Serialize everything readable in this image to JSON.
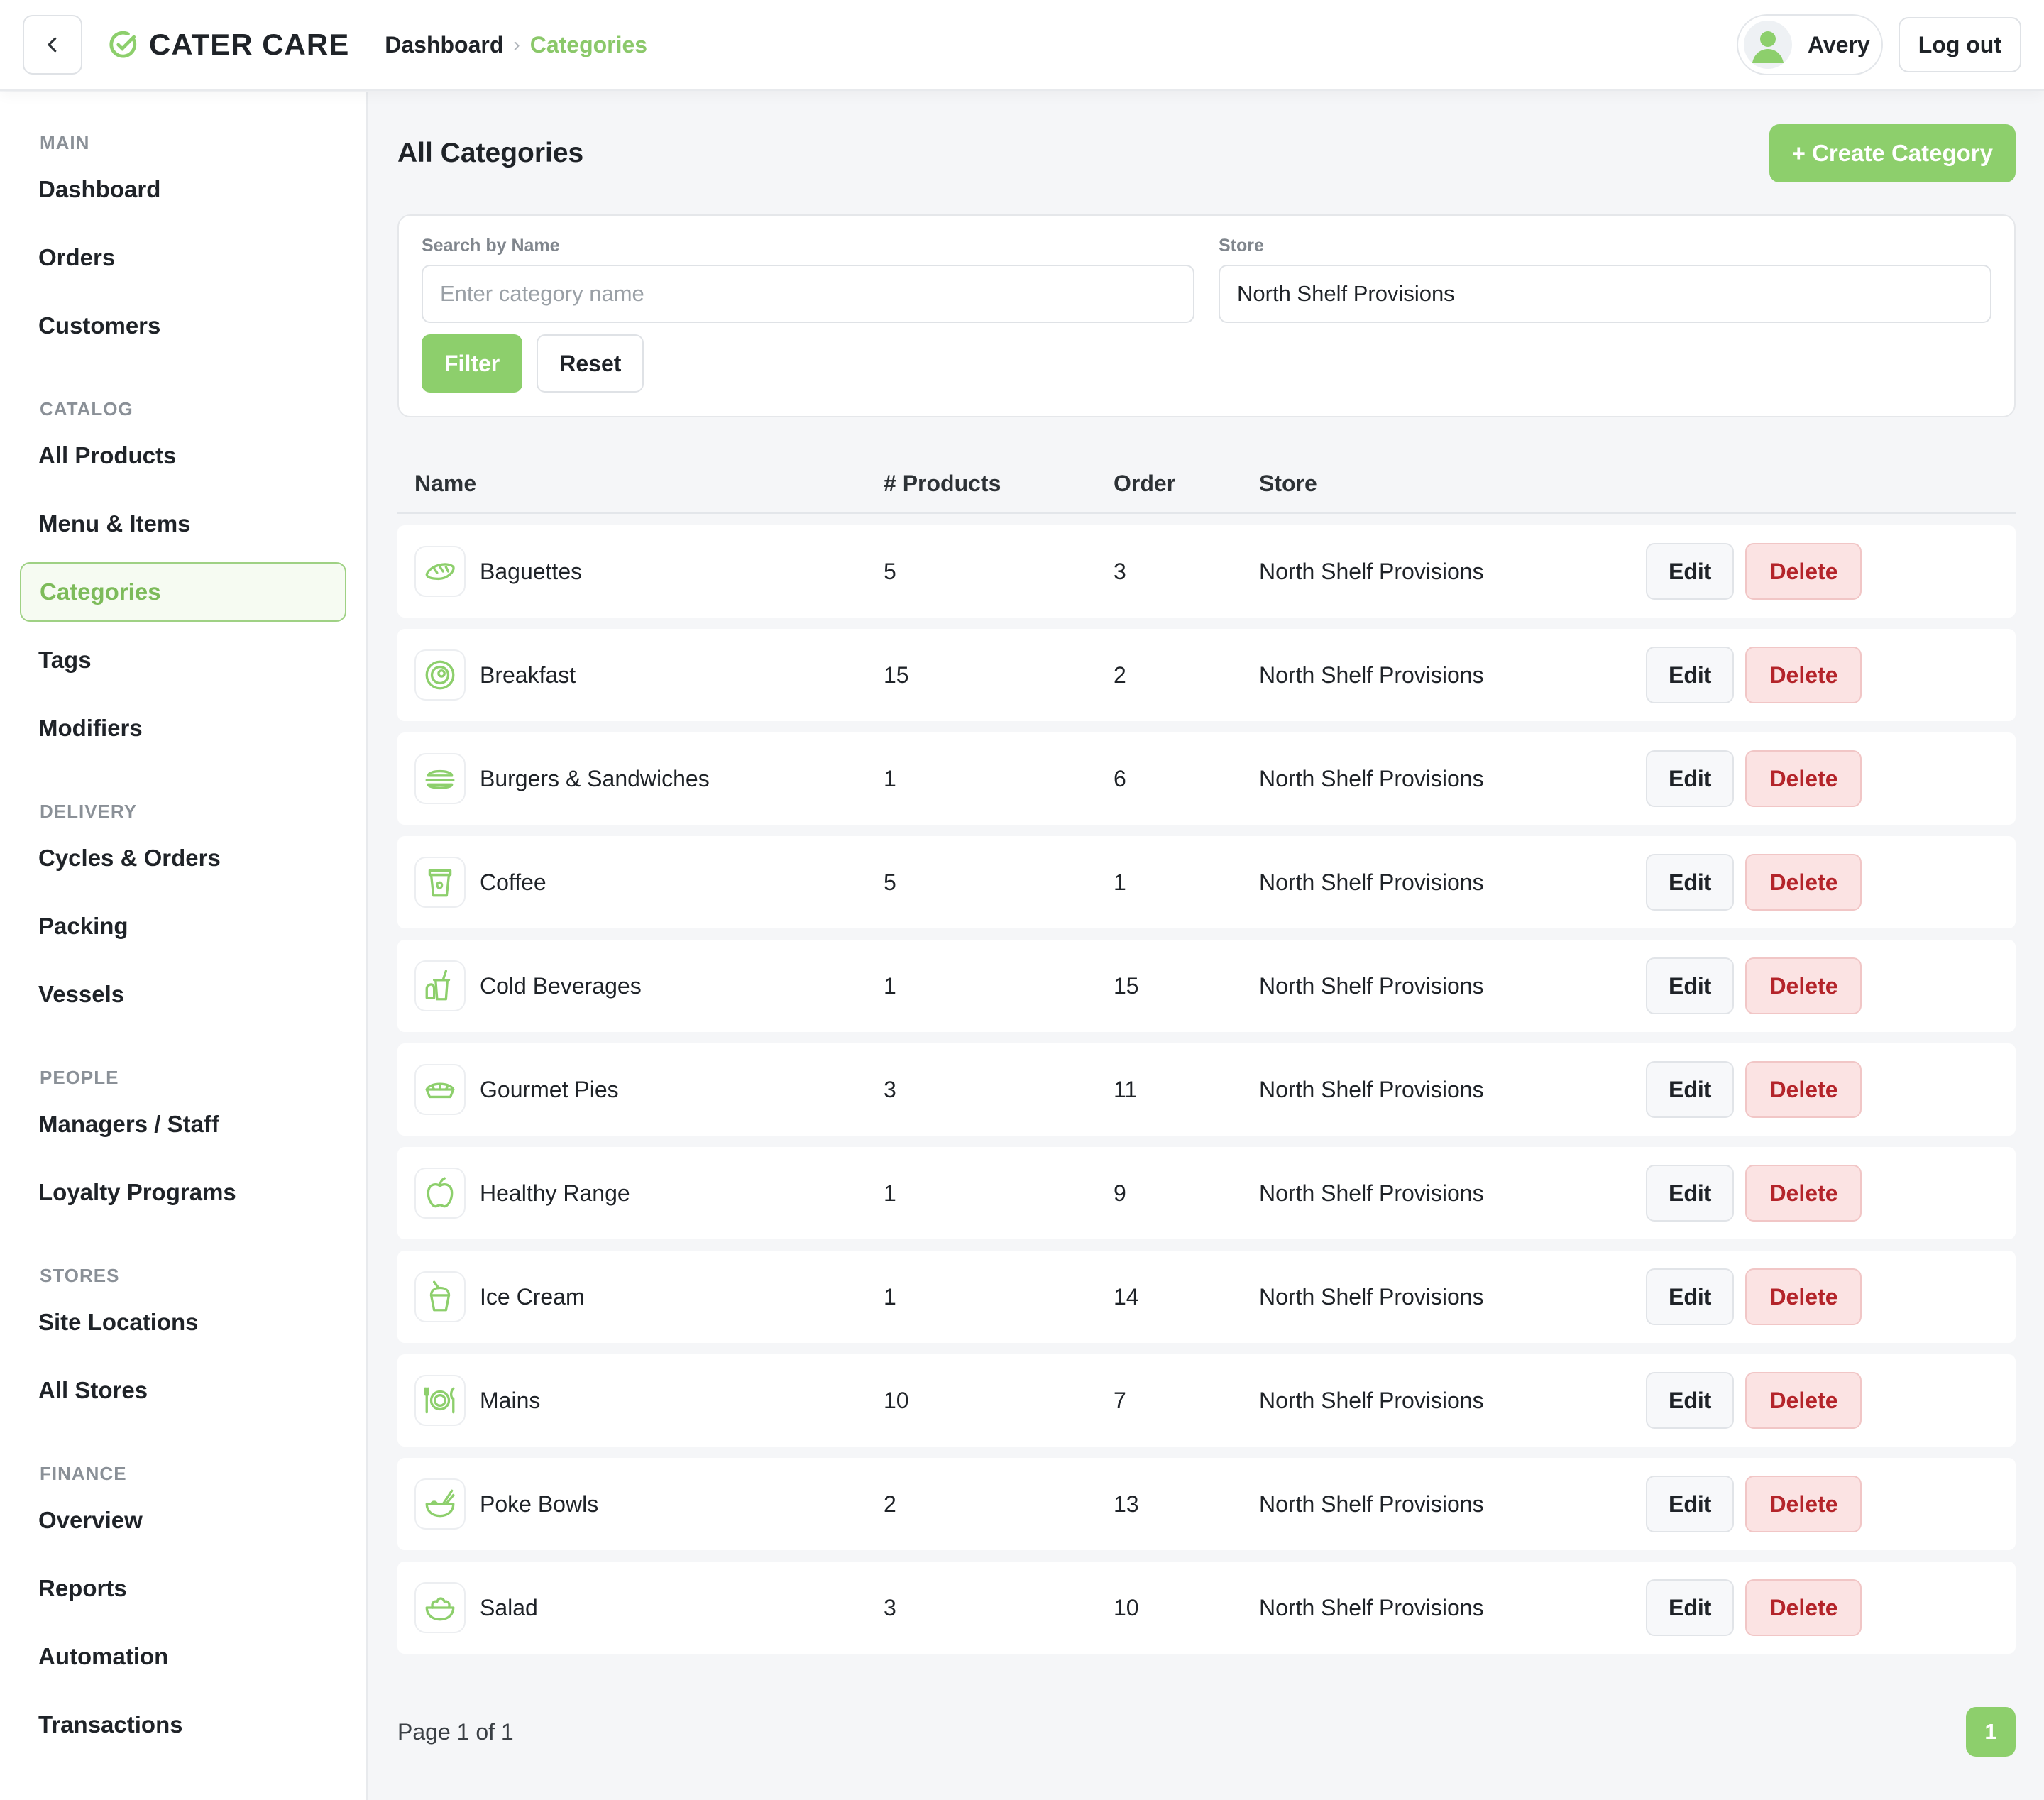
{
  "header": {
    "brand": "CATER CARE",
    "breadcrumb": {
      "home": "Dashboard",
      "separator": "›",
      "current": "Categories"
    },
    "user_name": "Avery",
    "logout_label": "Log out"
  },
  "sidebar": {
    "sections": [
      {
        "title": "MAIN",
        "items": [
          "Dashboard",
          "Orders",
          "Customers"
        ]
      },
      {
        "title": "CATALOG",
        "items": [
          "All Products",
          "Menu & Items",
          "Categories",
          "Tags",
          "Modifiers"
        ]
      },
      {
        "title": "DELIVERY",
        "items": [
          "Cycles & Orders",
          "Packing",
          "Vessels"
        ]
      },
      {
        "title": "PEOPLE",
        "items": [
          "Managers / Staff",
          "Loyalty Programs"
        ]
      },
      {
        "title": "STORES",
        "items": [
          "Site Locations",
          "All Stores"
        ]
      },
      {
        "title": "FINANCE",
        "items": [
          "Overview",
          "Reports",
          "Automation",
          "Transactions"
        ]
      }
    ],
    "active_item": "Categories"
  },
  "main": {
    "title": "All Categories",
    "create_label": "+ Create Category",
    "filter": {
      "search_label": "Search by Name",
      "search_placeholder": "Enter category name",
      "search_value": "",
      "store_label": "Store",
      "store_value": "North Shelf Provisions",
      "filter_label": "Filter",
      "reset_label": "Reset"
    },
    "table": {
      "columns": [
        "Name",
        "# Products",
        "Order",
        "Store"
      ],
      "edit_label": "Edit",
      "delete_label": "Delete",
      "rows": [
        {
          "name": "Baguettes",
          "products": "5",
          "order": "3",
          "store": "North Shelf Provisions",
          "icon": "baguette-icon"
        },
        {
          "name": "Breakfast",
          "products": "15",
          "order": "2",
          "store": "North Shelf Provisions",
          "icon": "breakfast-plate-icon"
        },
        {
          "name": "Burgers & Sandwiches",
          "products": "1",
          "order": "6",
          "store": "North Shelf Provisions",
          "icon": "burger-icon"
        },
        {
          "name": "Coffee",
          "products": "5",
          "order": "1",
          "store": "North Shelf Provisions",
          "icon": "coffee-cup-icon"
        },
        {
          "name": "Cold Beverages",
          "products": "1",
          "order": "15",
          "store": "North Shelf Provisions",
          "icon": "cold-drink-icon"
        },
        {
          "name": "Gourmet Pies",
          "products": "3",
          "order": "11",
          "store": "North Shelf Provisions",
          "icon": "pie-icon"
        },
        {
          "name": "Healthy Range",
          "products": "1",
          "order": "9",
          "store": "North Shelf Provisions",
          "icon": "apple-icon"
        },
        {
          "name": "Ice Cream",
          "products": "1",
          "order": "14",
          "store": "North Shelf Provisions",
          "icon": "ice-cream-icon"
        },
        {
          "name": "Mains",
          "products": "10",
          "order": "7",
          "store": "North Shelf Provisions",
          "icon": "plate-cutlery-icon"
        },
        {
          "name": "Poke Bowls",
          "products": "2",
          "order": "13",
          "store": "North Shelf Provisions",
          "icon": "bowl-icon"
        },
        {
          "name": "Salad",
          "products": "3",
          "order": "10",
          "store": "North Shelf Provisions",
          "icon": "salad-icon"
        }
      ]
    },
    "pagination": {
      "info": "Page 1 of 1",
      "current_page": "1"
    }
  },
  "colors": {
    "accent": "#8dcf6c",
    "danger_text": "#b4242a",
    "danger_bg": "#fbe3e3"
  }
}
